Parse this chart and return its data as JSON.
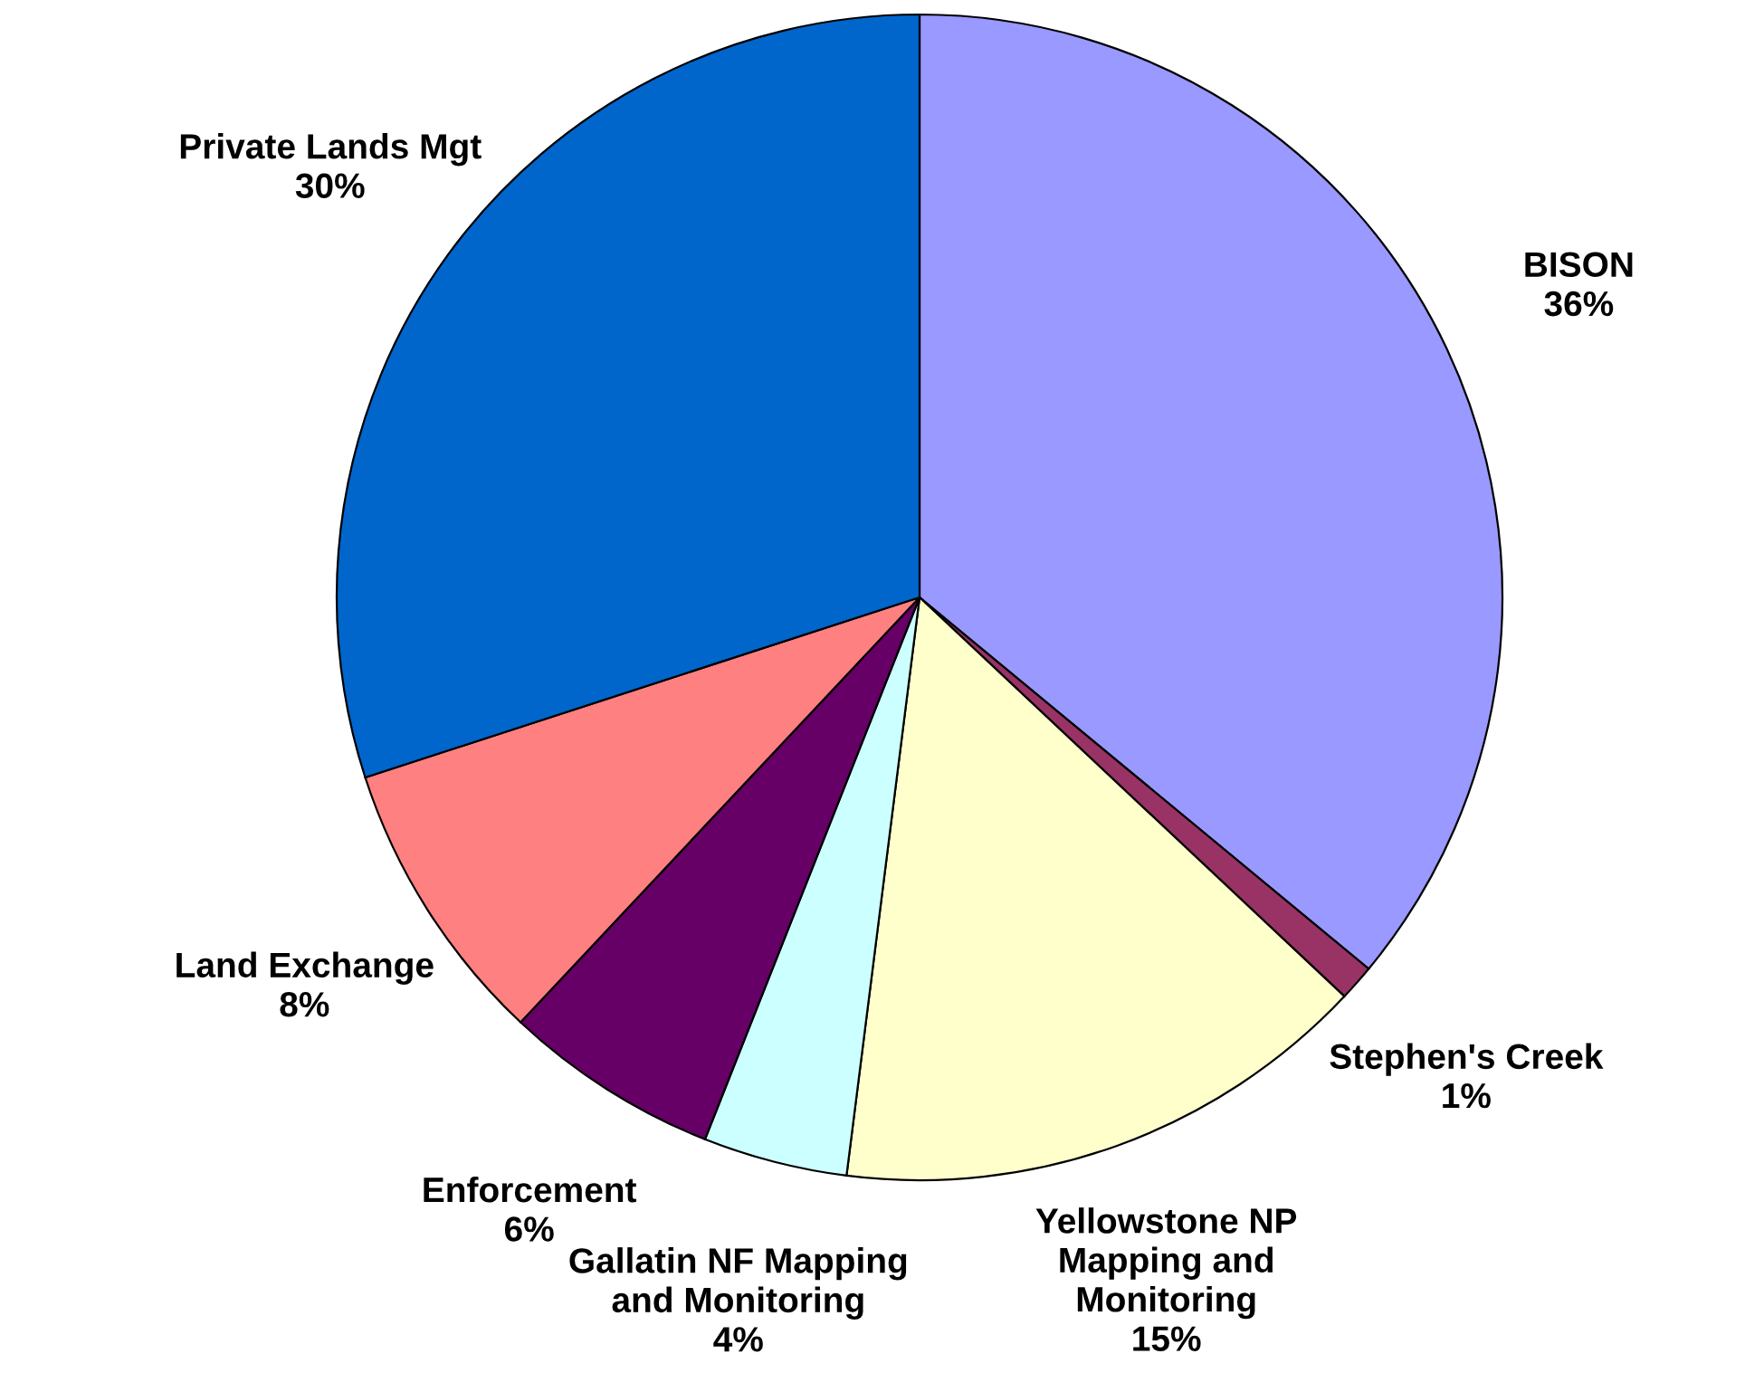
{
  "chart_data": {
    "type": "pie",
    "categories": [
      "BISON",
      "Stephen's Creek",
      "Yellowstone NP\nMapping and\nMonitoring",
      "Gallatin NF Mapping\nand Monitoring",
      "Enforcement",
      "Land Exchange",
      "Private Lands Mgt"
    ],
    "values": [
      36,
      1,
      15,
      4,
      6,
      8,
      30
    ],
    "value_labels": [
      "36%",
      "1%",
      "15%",
      "4%",
      "6%",
      "8%",
      "30%"
    ],
    "colors": [
      "#9999ff",
      "#993366",
      "#ffffcc",
      "#ccffff",
      "#660066",
      "#ff8080",
      "#0066cc"
    ]
  }
}
